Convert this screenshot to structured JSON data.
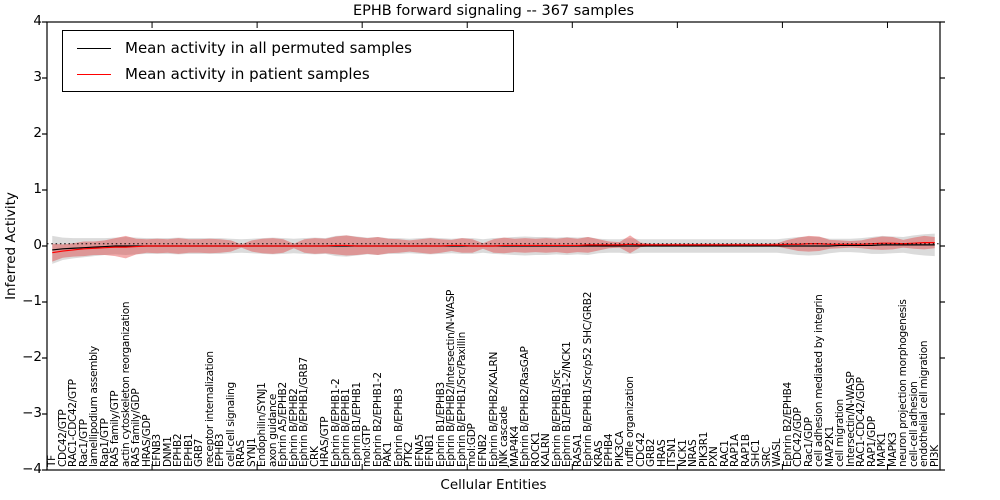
{
  "figure": {
    "title": "EPHB forward signaling -- 367 samples",
    "xlabel": "Cellular Entities",
    "ylabel": "Inferred Activity"
  },
  "legend": {
    "position": "upper left",
    "entries": [
      {
        "label": "Mean activity in all permuted samples",
        "color": "#000000"
      },
      {
        "label": "Mean activity in patient samples",
        "color": "#ff0000"
      }
    ]
  },
  "chart_data": {
    "type": "line",
    "title": "EPHB forward signaling -- 367 samples",
    "xlabel": "Cellular Entities",
    "ylabel": "Inferred Activity",
    "ylim": [
      -4,
      4
    ],
    "yticks": [
      4,
      3,
      2,
      1,
      0,
      -1,
      -2,
      -3,
      -4
    ],
    "grid": false,
    "legend_position": "upper left",
    "categories": [
      "TF",
      "CDC42/GTP",
      "RAC1-CDC42/GTP",
      "Rac1/GTP",
      "lamellipodium assembly",
      "Rap1/GTP",
      "RAS family/GTP",
      "actin cytoskeleton reorganization",
      "RAS family/GDP",
      "HRAS/GDP",
      "EFNB3",
      "DNM1",
      "EPHB2",
      "EPHB1",
      "GRB7",
      "receptor internalization",
      "EPHB3",
      "cell-cell signaling",
      "RRAS",
      "SYNJ1",
      "Endophilin/SYNJ1",
      "axon guidance",
      "Ephrin A5/EPHB2",
      "Ephrin B/EPHB2",
      "Ephrin B/EPHB1/GRB7",
      "CRK",
      "HRAS/GTP",
      "Ephrin B/EPHB1-2",
      "Ephrin B/EPHB1",
      "Ephrin B1/EPHB1",
      "mol:GTP",
      "Ephrin B2/EPHB1-2",
      "PAK1",
      "Ephrin B/EPHB3",
      "PTK2",
      "EFNA5",
      "EFNB1",
      "Ephrin B1/EPHB3",
      "Ephrin B/EPHB2/Intersectin/N-WASP",
      "Ephrin B/EPHB1/Src/Paxillin",
      "mol:GDP",
      "EFNB2",
      "Ephrin B/EPHB2/KALRN",
      "JNK cascade",
      "MAP4K4",
      "Ephrin B/EPHB2/RasGAP",
      "ROCK1",
      "KALRN",
      "Ephrin B/EPHB1/Src",
      "Ephrin B1/EPHB1-2/NCK1",
      "RASA1",
      "Ephrin B/EPHB1/Src/p52 SHC/GRB2",
      "KRAS",
      "EPHB4",
      "PIK3CA",
      "ruffle organization",
      "CDC42",
      "GRB2",
      "HRAS",
      "ITSN1",
      "NCK1",
      "NRAS",
      "PIK3R1",
      "PXN",
      "RAC1",
      "RAP1A",
      "RAP1B",
      "SHC1",
      "SRC",
      "WASL",
      "Ephrin B2/EPHB4",
      "CDC42/GDP",
      "Rac1/GDP",
      "cell adhesion mediated by integrin",
      "MAP2K1",
      "cell migration",
      "Intersectin/N-WASP",
      "RAC1-CDC42/GDP",
      "RAP1/GDP",
      "MAPK1",
      "MAPK3",
      "neuron projection morphogenesis",
      "cell-cell adhesion",
      "endothelial cell migration",
      "PI3K"
    ],
    "series": [
      {
        "name": "Mean activity in all permuted samples",
        "role": "permuted-mean",
        "color": "#000000",
        "style": "solid",
        "values": [
          -0.07,
          -0.05,
          -0.04,
          -0.03,
          -0.02,
          -0.01,
          0,
          0,
          0,
          0,
          0,
          0,
          0,
          0,
          0,
          0,
          0,
          0,
          0,
          0,
          0,
          0,
          0,
          0,
          0,
          0,
          0,
          0,
          0,
          0,
          0,
          0,
          0,
          0,
          0,
          0,
          0,
          0,
          0,
          0,
          0,
          0,
          0,
          0,
          0,
          0,
          0,
          0,
          0,
          0,
          0,
          0,
          0,
          0,
          0,
          0,
          0,
          0,
          0,
          0,
          0,
          0,
          0,
          0,
          0,
          0,
          0,
          0,
          0,
          0,
          0,
          0,
          0,
          0,
          0,
          0.01,
          0.01,
          0.01,
          0.01,
          0.02,
          0.02,
          0.02,
          0.02,
          0.02,
          0.02
        ]
      },
      {
        "name": "Permuted samples +/- 1 std band",
        "role": "permuted-band",
        "color": "#999999",
        "opacity": 0.35,
        "halfwidths": [
          0.25,
          0.2,
          0.18,
          0.17,
          0.16,
          0.15,
          0.15,
          0.16,
          0.15,
          0.14,
          0.14,
          0.14,
          0.15,
          0.14,
          0.14,
          0.14,
          0.14,
          0.13,
          0.12,
          0.13,
          0.14,
          0.15,
          0.14,
          0.13,
          0.14,
          0.15,
          0.14,
          0.18,
          0.19,
          0.17,
          0.15,
          0.16,
          0.14,
          0.14,
          0.13,
          0.14,
          0.15,
          0.14,
          0.13,
          0.14,
          0.14,
          0.12,
          0.14,
          0.15,
          0.16,
          0.17,
          0.16,
          0.16,
          0.15,
          0.16,
          0.15,
          0.16,
          0.13,
          0.12,
          0.12,
          0.14,
          0.12,
          0.12,
          0.12,
          0.12,
          0.12,
          0.12,
          0.12,
          0.12,
          0.12,
          0.12,
          0.12,
          0.12,
          0.12,
          0.12,
          0.14,
          0.16,
          0.17,
          0.16,
          0.13,
          0.12,
          0.12,
          0.13,
          0.15,
          0.16,
          0.15,
          0.14,
          0.17,
          0.19,
          0.2
        ]
      },
      {
        "name": "Mean activity in patient samples",
        "role": "patient-mean",
        "color": "#ff0000",
        "style": "solid",
        "values": [
          -0.12,
          -0.09,
          -0.07,
          -0.05,
          -0.04,
          -0.03,
          -0.02,
          -0.02,
          -0.01,
          0,
          0,
          0,
          0,
          0,
          0,
          0,
          0,
          0,
          0,
          0,
          0,
          0,
          0,
          0,
          0,
          0,
          0,
          0.01,
          0.01,
          0,
          0,
          0,
          0,
          0,
          0,
          0,
          0,
          0,
          0.01,
          0.01,
          0,
          0,
          0,
          0.01,
          0.01,
          0.01,
          0.01,
          0.01,
          0.01,
          0.01,
          0.01,
          0.02,
          0.02,
          0.02,
          0.02,
          0.03,
          0.02,
          0.02,
          0.02,
          0.02,
          0.02,
          0.02,
          0.02,
          0.02,
          0.02,
          0.02,
          0.02,
          0.02,
          0.02,
          0.02,
          0.03,
          0.03,
          0.04,
          0.04,
          0.03,
          0.03,
          0.03,
          0.03,
          0.04,
          0.05,
          0.05,
          0.04,
          0.05,
          0.06,
          0.06
        ]
      },
      {
        "name": "Patient samples +/- 1 std band",
        "role": "patient-band",
        "color": "#e03030",
        "opacity": 0.4,
        "halfwidths": [
          0.16,
          0.12,
          0.12,
          0.13,
          0.12,
          0.13,
          0.16,
          0.2,
          0.14,
          0.12,
          0.13,
          0.12,
          0.14,
          0.12,
          0.12,
          0.13,
          0.12,
          0.1,
          0.03,
          0.1,
          0.13,
          0.14,
          0.12,
          0.04,
          0.12,
          0.14,
          0.13,
          0.16,
          0.18,
          0.16,
          0.14,
          0.16,
          0.13,
          0.12,
          0.1,
          0.12,
          0.14,
          0.12,
          0.1,
          0.13,
          0.12,
          0.05,
          0.12,
          0.14,
          0.12,
          0.13,
          0.12,
          0.13,
          0.12,
          0.14,
          0.12,
          0.14,
          0.1,
          0.06,
          0.05,
          0.16,
          0.04,
          0.02,
          0.02,
          0.02,
          0.02,
          0.02,
          0.02,
          0.02,
          0.02,
          0.02,
          0.02,
          0.02,
          0.02,
          0.03,
          0.08,
          0.12,
          0.14,
          0.13,
          0.08,
          0.07,
          0.06,
          0.07,
          0.1,
          0.12,
          0.11,
          0.07,
          0.1,
          0.12,
          0.1
        ]
      },
      {
        "name": "Dotted reference line",
        "role": "dotted-reference",
        "color": "#000000",
        "style": "dotted",
        "value": 0.04
      }
    ]
  }
}
